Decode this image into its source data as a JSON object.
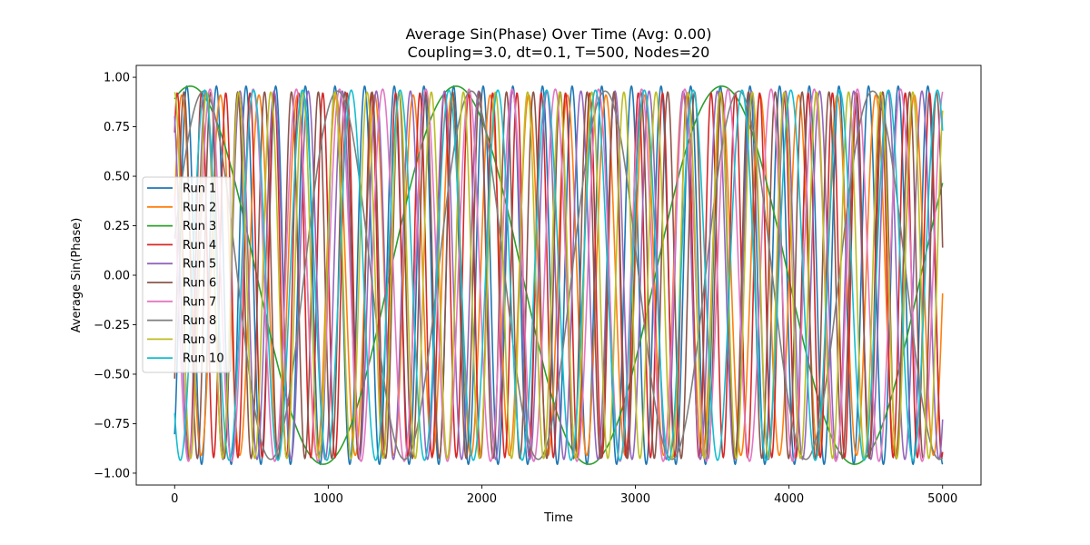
{
  "chart_data": {
    "type": "line",
    "title": "Average Sin(Phase) Over Time (Avg: 0.00)",
    "subtitle": "Coupling=3.0, dt=0.1, T=500, Nodes=20",
    "xlabel": "Time",
    "ylabel": "Average Sin(Phase)",
    "xlim": [
      -250,
      5250
    ],
    "ylim": [
      -1.06,
      1.06
    ],
    "xticks": [
      0,
      1000,
      2000,
      3000,
      4000,
      5000
    ],
    "yticks": [
      -1.0,
      -0.75,
      -0.5,
      -0.25,
      0.0,
      0.25,
      0.5,
      0.75,
      1.0
    ],
    "xtick_labels": [
      "0",
      "1000",
      "2000",
      "3000",
      "4000",
      "5000"
    ],
    "ytick_labels": [
      "−1.00",
      "−0.75",
      "−0.50",
      "−0.25",
      "0.00",
      "0.25",
      "0.50",
      "0.75",
      "1.00"
    ],
    "grid": false,
    "legend_position": "center-left",
    "series": [
      {
        "name": "Run 1",
        "color": "#1f77b4",
        "amplitude": 0.955,
        "period": 193,
        "phase": -1.0,
        "x_end": 5000
      },
      {
        "name": "Run 2",
        "color": "#ff7f0e",
        "amplitude": 0.91,
        "period": 251,
        "phase": 0.4,
        "x_end": 5000
      },
      {
        "name": "Run 3",
        "color": "#2ca02c",
        "amplitude": 0.955,
        "period": 1730,
        "phase": 1.2,
        "x_end": 5000
      },
      {
        "name": "Run 4",
        "color": "#d62728",
        "amplitude": 0.92,
        "period": 158,
        "phase": 0.9,
        "x_end": 5000
      },
      {
        "name": "Run 5",
        "color": "#9467bd",
        "amplitude": 0.93,
        "period": 222,
        "phase": 2.1,
        "x_end": 5000
      },
      {
        "name": "Run 6",
        "color": "#8c564b",
        "amplitude": 0.925,
        "period": 175,
        "phase": -0.6,
        "x_end": 5000
      },
      {
        "name": "Run 7",
        "color": "#e377c2",
        "amplitude": 0.94,
        "period": 281,
        "phase": 2.7,
        "x_end": 5000
      },
      {
        "name": "Run 8",
        "color": "#7f7f7f",
        "amplitude": 0.93,
        "period": 871,
        "phase": 0.2,
        "x_end": 5000
      },
      {
        "name": "Run 9",
        "color": "#bcbd22",
        "amplitude": 0.925,
        "period": 209,
        "phase": 1.6,
        "x_end": 5000
      },
      {
        "name": "Run 10",
        "color": "#17becf",
        "amplitude": 0.935,
        "period": 318,
        "phase": -2.3,
        "x_end": 5000
      }
    ]
  }
}
